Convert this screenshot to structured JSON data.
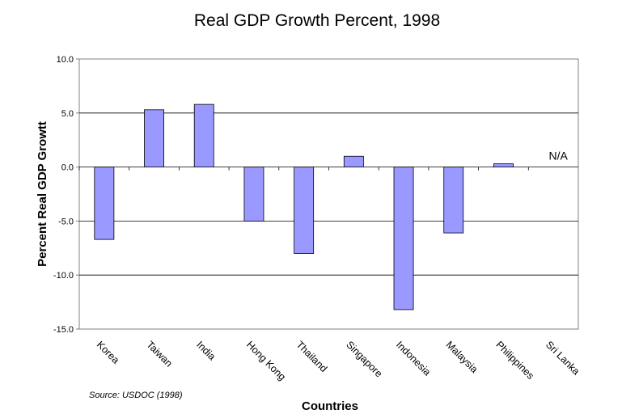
{
  "chart_data": {
    "type": "bar",
    "title": "Real GDP Growth Percent, 1998",
    "xlabel": "Countries",
    "ylabel": "Percent Real GDP Growtt",
    "categories": [
      "Korea",
      "Taiwan",
      "India",
      "Hong Kong",
      "Thailand",
      "Singapore",
      "Indonesia",
      "Malaysia",
      "Philippines",
      "Sri Lanka"
    ],
    "values": [
      -6.7,
      5.3,
      5.8,
      -5.0,
      -8.0,
      1.0,
      -13.2,
      -6.1,
      0.3,
      null
    ],
    "ylim": [
      -15,
      10
    ],
    "yticks": [
      "10.0",
      "5.0",
      "0.0",
      "-5.0",
      "-10.0",
      "-15.0"
    ],
    "ytick_values": [
      10,
      5,
      0,
      -5,
      -10,
      -15
    ],
    "grid": true,
    "annotations": [
      {
        "category": "Sri Lanka",
        "text": "N/A"
      }
    ],
    "source": "Source: USDOC (1998)",
    "bar_color": "#9999ff",
    "bar_stroke": "#000000"
  }
}
